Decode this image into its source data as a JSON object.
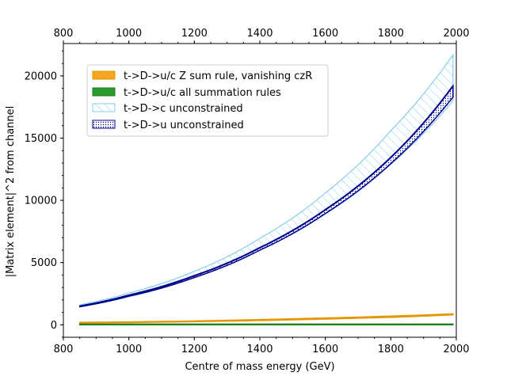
{
  "chart_data": {
    "type": "area",
    "title": "",
    "xlabel": "Centre of mass energy (GeV)",
    "ylabel": "|Matrix element|^2 from channel",
    "xlim": [
      800,
      2000
    ],
    "ylim": [
      -1000,
      22600
    ],
    "x_ticks": [
      "800",
      "1000",
      "1200",
      "1400",
      "1600",
      "1800",
      "2000"
    ],
    "y_ticks": [
      "0",
      "5000",
      "10000",
      "15000",
      "20000"
    ],
    "top_axis_ticks": [
      "800",
      "1000",
      "1200",
      "1400",
      "1600",
      "1800",
      "2000"
    ],
    "legend_position": "upper-left",
    "series": [
      {
        "name": "t->D->u/c Z sum rule, vanishing czR",
        "style": "filled",
        "fill": "#f5a623",
        "edge": "#e69500",
        "x": [
          850,
          1000,
          1200,
          1400,
          1600,
          1800,
          1990
        ],
        "lower": [
          150,
          180,
          250,
          340,
          460,
          600,
          800
        ],
        "upper": [
          200,
          230,
          310,
          420,
          550,
          700,
          880
        ]
      },
      {
        "name": "t->D->u/c all summation rules",
        "style": "filled",
        "fill": "#2a9a2a",
        "edge": "#1e7f1e",
        "x": [
          850,
          1990
        ],
        "lower": [
          0,
          0
        ],
        "upper": [
          60,
          60
        ]
      },
      {
        "name": "t->D->c unconstrained",
        "style": "hatched",
        "fill": "none",
        "edge": "#87ceeb",
        "x": [
          850,
          1000,
          1200,
          1400,
          1600,
          1800,
          1990
        ],
        "lower": [
          1450,
          2250,
          3800,
          6000,
          8900,
          12900,
          18000
        ],
        "upper": [
          1600,
          2550,
          4300,
          6950,
          10600,
          15600,
          21700
        ]
      },
      {
        "name": "t->D->u unconstrained",
        "style": "dotted",
        "fill": "#ffffff",
        "edge": "#00008b",
        "x": [
          850,
          1000,
          1200,
          1400,
          1600,
          1800,
          1990
        ],
        "lower": [
          1450,
          2300,
          3800,
          6000,
          8950,
          12950,
          18300
        ],
        "upper": [
          1500,
          2380,
          3950,
          6200,
          9250,
          13450,
          19200
        ]
      }
    ]
  }
}
